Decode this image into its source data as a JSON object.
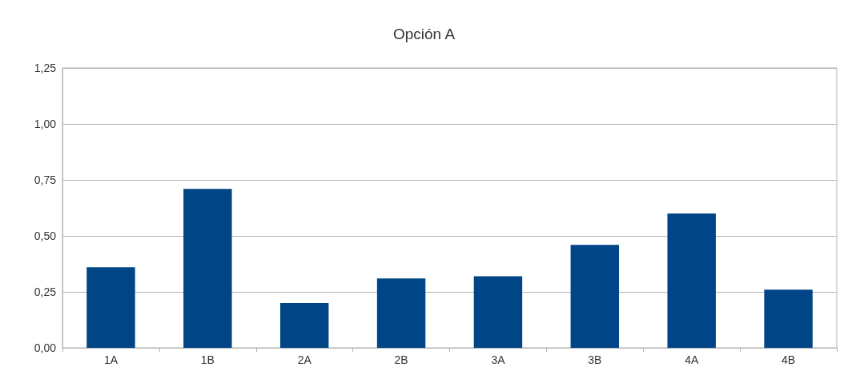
{
  "chart_data": {
    "type": "bar",
    "title": "Opción A",
    "categories": [
      "1A",
      "1B",
      "2A",
      "2B",
      "3A",
      "3B",
      "4A",
      "4B"
    ],
    "values": [
      0.36,
      0.71,
      0.2,
      0.31,
      0.32,
      0.46,
      0.6,
      0.26
    ],
    "color": "#004586",
    "ylim": [
      0,
      1.25
    ],
    "yticks": [
      {
        "value": 0,
        "label": "0,00"
      },
      {
        "value": 0.25,
        "label": "0,25"
      },
      {
        "value": 0.5,
        "label": "0,50"
      },
      {
        "value": 0.75,
        "label": "0,75"
      },
      {
        "value": 1,
        "label": "1,00"
      },
      {
        "value": 1.25,
        "label": "1,25"
      }
    ],
    "grid": "y"
  }
}
